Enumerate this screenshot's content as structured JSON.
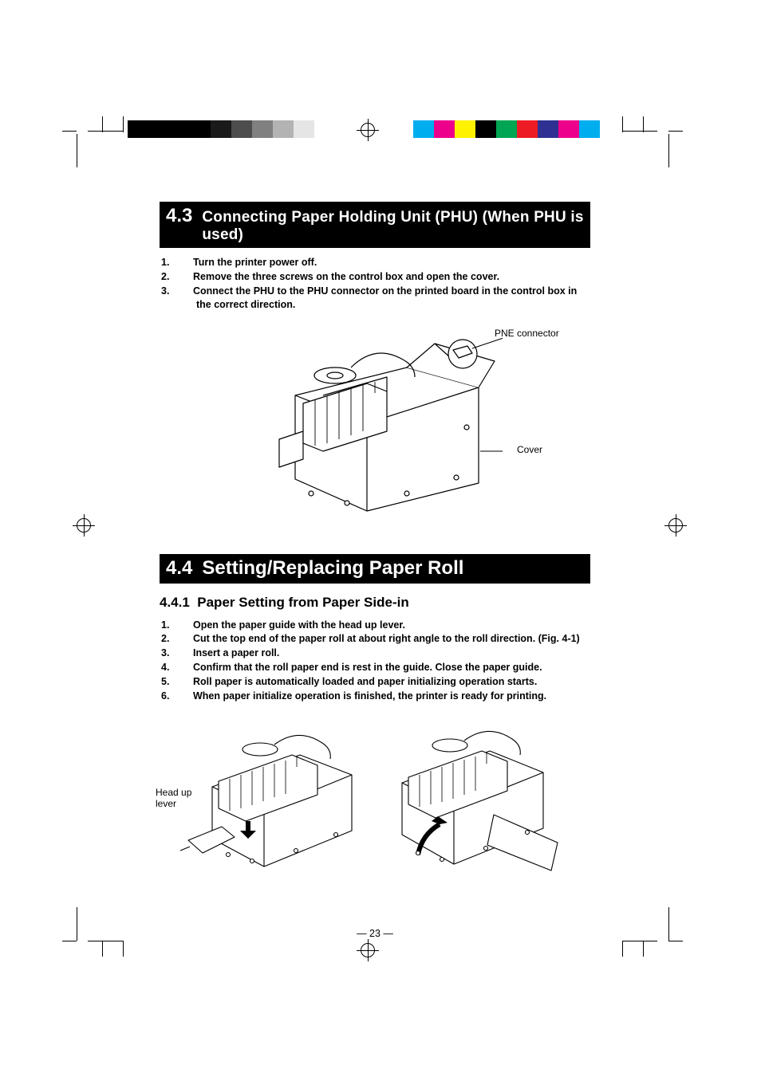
{
  "registration_marks": {
    "grey_bar_colors": [
      "#000000",
      "#000000",
      "#000000",
      "#000000",
      "#1a1a1a",
      "#4d4d4d",
      "#808080",
      "#b3b3b3",
      "#e5e5e5"
    ],
    "color_bar_colors": [
      "#00aeef",
      "#ec008c",
      "#fff200",
      "#000000",
      "#00a651",
      "#ed1c24",
      "#2e3192",
      "#ec008c",
      "#00aeef"
    ]
  },
  "section_43": {
    "number": "4.3",
    "title": "Connecting Paper Holding Unit (PHU) (When PHU is used)",
    "steps": [
      "Turn the printer power off.",
      "Remove the three screws on the control box and open the cover.",
      "Connect the PHU to the PHU connector on the printed board in the control box in the correct direction."
    ],
    "callouts": {
      "pne": "PNE connector",
      "cover": "Cover"
    }
  },
  "section_44": {
    "number": "4.4",
    "title": "Setting/Replacing Paper Roll",
    "sub_number": "4.4.1",
    "sub_title": "Paper Setting from Paper Side-in",
    "steps": [
      "Open the paper guide with the head up lever.",
      "Cut the top end of the paper roll at about right angle to the roll direction. (Fig. 4-1)",
      "Insert a paper roll.",
      "Confirm that the roll paper end is rest in the guide.  Close the paper guide.",
      "Roll paper is automatically loaded and paper initializing operation starts.",
      "When paper initialize operation is finished, the printer is ready for printing."
    ],
    "callouts": {
      "head_up_lever_1": "Head up",
      "head_up_lever_2": "lever"
    }
  },
  "page_number": "— 23 —"
}
